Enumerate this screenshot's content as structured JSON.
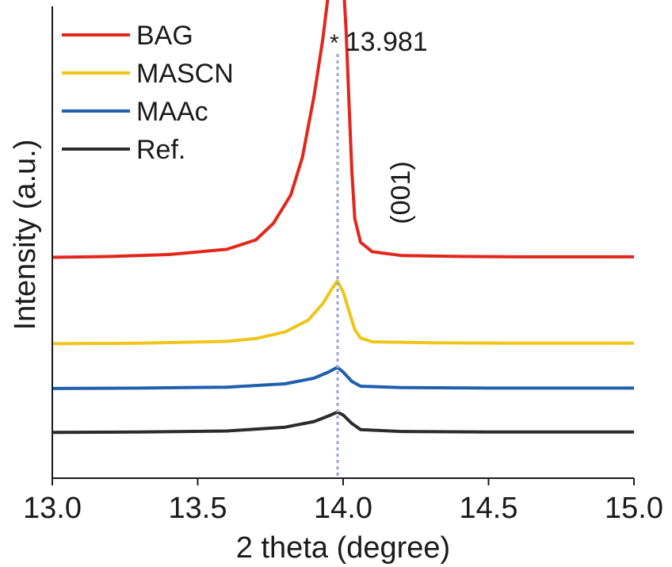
{
  "chart_data": {
    "type": "line",
    "xlabel": "2 theta (degree)",
    "ylabel": "Intensity (a.u.)",
    "xlim": [
      13.0,
      15.0
    ],
    "xticks": [
      "13.0",
      "13.5",
      "14.0",
      "14.5",
      "15.0"
    ],
    "peak_marker": {
      "x": 13.981,
      "label": "13.981",
      "symbol": "*"
    },
    "plane_label": "(001)",
    "legend_position": "top-left",
    "series": [
      {
        "name": "BAG",
        "color": "#e3261c",
        "points": [
          [
            13.0,
            0.468
          ],
          [
            13.2,
            0.47
          ],
          [
            13.4,
            0.474
          ],
          [
            13.6,
            0.485
          ],
          [
            13.7,
            0.505
          ],
          [
            13.76,
            0.54
          ],
          [
            13.82,
            0.6
          ],
          [
            13.86,
            0.68
          ],
          [
            13.9,
            0.81
          ],
          [
            13.93,
            0.93
          ],
          [
            13.95,
            1.03
          ],
          [
            13.97,
            1.11
          ],
          [
            13.981,
            1.14
          ],
          [
            13.99,
            1.12
          ],
          [
            14.0,
            1.06
          ],
          [
            14.01,
            0.95
          ],
          [
            14.02,
            0.8
          ],
          [
            14.03,
            0.65
          ],
          [
            14.04,
            0.55
          ],
          [
            14.06,
            0.5
          ],
          [
            14.1,
            0.48
          ],
          [
            14.2,
            0.472
          ],
          [
            14.4,
            0.47
          ],
          [
            14.6,
            0.469
          ],
          [
            14.8,
            0.469
          ],
          [
            15.0,
            0.469
          ]
        ]
      },
      {
        "name": "MASCN",
        "color": "#f0c419",
        "points": [
          [
            13.0,
            0.285
          ],
          [
            13.3,
            0.286
          ],
          [
            13.6,
            0.29
          ],
          [
            13.7,
            0.296
          ],
          [
            13.8,
            0.31
          ],
          [
            13.88,
            0.335
          ],
          [
            13.93,
            0.37
          ],
          [
            13.96,
            0.4
          ],
          [
            13.98,
            0.418
          ],
          [
            14.0,
            0.395
          ],
          [
            14.02,
            0.355
          ],
          [
            14.04,
            0.315
          ],
          [
            14.06,
            0.297
          ],
          [
            14.1,
            0.289
          ],
          [
            14.3,
            0.287
          ],
          [
            14.6,
            0.286
          ],
          [
            15.0,
            0.286
          ]
        ]
      },
      {
        "name": "MAAc",
        "color": "#1f5fad",
        "points": [
          [
            13.0,
            0.19
          ],
          [
            13.3,
            0.191
          ],
          [
            13.6,
            0.193
          ],
          [
            13.8,
            0.2
          ],
          [
            13.9,
            0.212
          ],
          [
            13.95,
            0.225
          ],
          [
            13.98,
            0.235
          ],
          [
            14.0,
            0.225
          ],
          [
            14.03,
            0.205
          ],
          [
            14.06,
            0.195
          ],
          [
            14.2,
            0.192
          ],
          [
            14.5,
            0.191
          ],
          [
            15.0,
            0.191
          ]
        ]
      },
      {
        "name": "Ref.",
        "color": "#2b2b2b",
        "points": [
          [
            13.0,
            0.097
          ],
          [
            13.3,
            0.098
          ],
          [
            13.6,
            0.1
          ],
          [
            13.8,
            0.108
          ],
          [
            13.9,
            0.12
          ],
          [
            13.95,
            0.132
          ],
          [
            13.98,
            0.14
          ],
          [
            14.0,
            0.134
          ],
          [
            14.03,
            0.116
          ],
          [
            14.06,
            0.103
          ],
          [
            14.2,
            0.099
          ],
          [
            14.5,
            0.098
          ],
          [
            15.0,
            0.098
          ]
        ]
      }
    ]
  }
}
